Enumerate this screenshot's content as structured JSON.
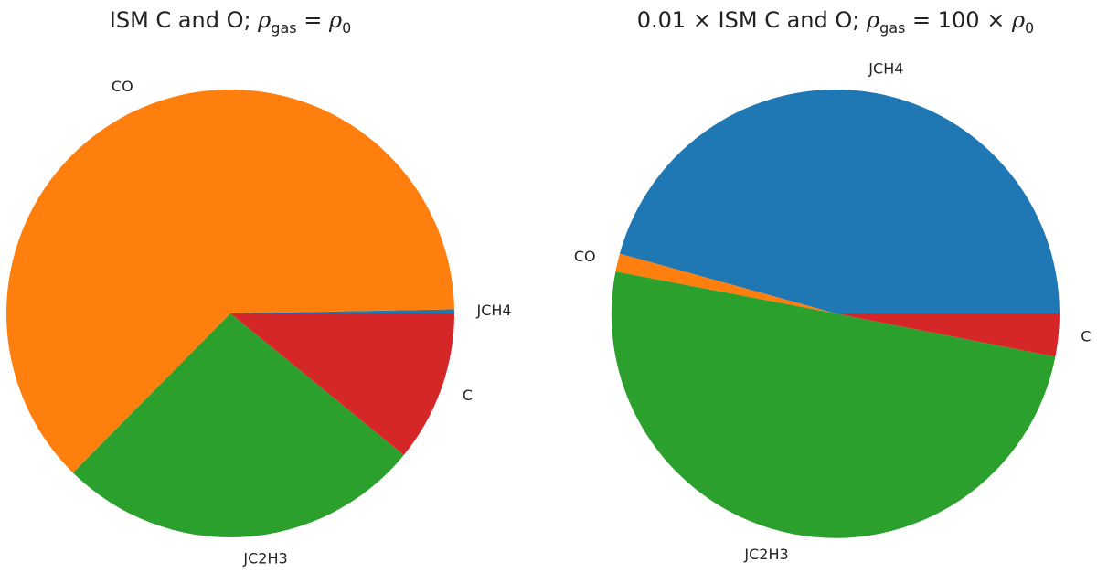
{
  "chart_data": [
    {
      "type": "pie",
      "title": {
        "prefix": "ISM C and O; ",
        "rho": "ρ",
        "sub_gas": "gas",
        "equals": " = ",
        "rho0": "ρ",
        "sub_0": "0",
        "multiplier": ""
      },
      "start_angle_deg": 0,
      "direction": "counterclockwise",
      "slices": [
        {
          "label": "JCH4",
          "value": 0.3,
          "color": "#1f77b4"
        },
        {
          "label": "CO",
          "value": 62.3,
          "color": "#ff7f0e"
        },
        {
          "label": "JC2H3",
          "value": 26.5,
          "color": "#2ca02c"
        },
        {
          "label": "C",
          "value": 10.9,
          "color": "#d62728"
        }
      ]
    },
    {
      "type": "pie",
      "title": {
        "prefix": "0.01 × ISM C and O; ",
        "rho": "ρ",
        "sub_gas": "gas",
        "equals": " = 100 × ",
        "rho0": "ρ",
        "sub_0": "0",
        "multiplier": ""
      },
      "start_angle_deg": 0,
      "direction": "counterclockwise",
      "slices": [
        {
          "label": "JCH4",
          "value": 45.7,
          "color": "#1f77b4"
        },
        {
          "label": "CO",
          "value": 1.3,
          "color": "#ff7f0e"
        },
        {
          "label": "JC2H3",
          "value": 49.9,
          "color": "#2ca02c"
        },
        {
          "label": "C",
          "value": 3.1,
          "color": "#d62728"
        }
      ]
    }
  ]
}
